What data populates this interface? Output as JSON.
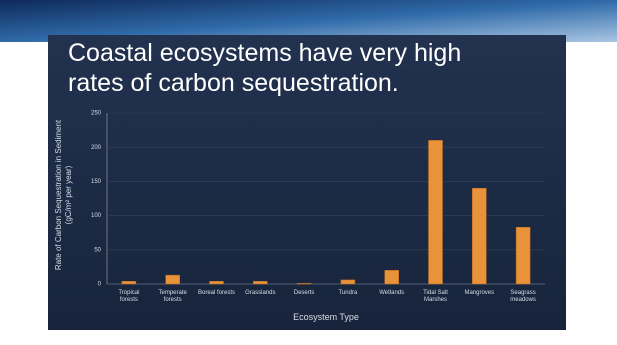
{
  "chart_data": {
    "type": "bar",
    "title": "Coastal ecosystems have very high rates of carbon sequestration.",
    "y_label": "Rate of Carbon Sequestration in Sediment (gC/m² per year)",
    "x_label": "Ecosystem Type",
    "categories": [
      "Tropical forests",
      "Temperate forests",
      "Boreal forests",
      "Grasslands",
      "Deserts",
      "Tundra",
      "Wetlands",
      "Tidal Salt Marshes",
      "Mangroves",
      "Seagrass meadows"
    ],
    "values": [
      4,
      13,
      4,
      4,
      1,
      6,
      20,
      210,
      140,
      83
    ],
    "color": "#e8923a",
    "ylim": [
      0,
      250
    ],
    "yticks": [
      0,
      50,
      100,
      150,
      200,
      250
    ],
    "grid": true
  }
}
